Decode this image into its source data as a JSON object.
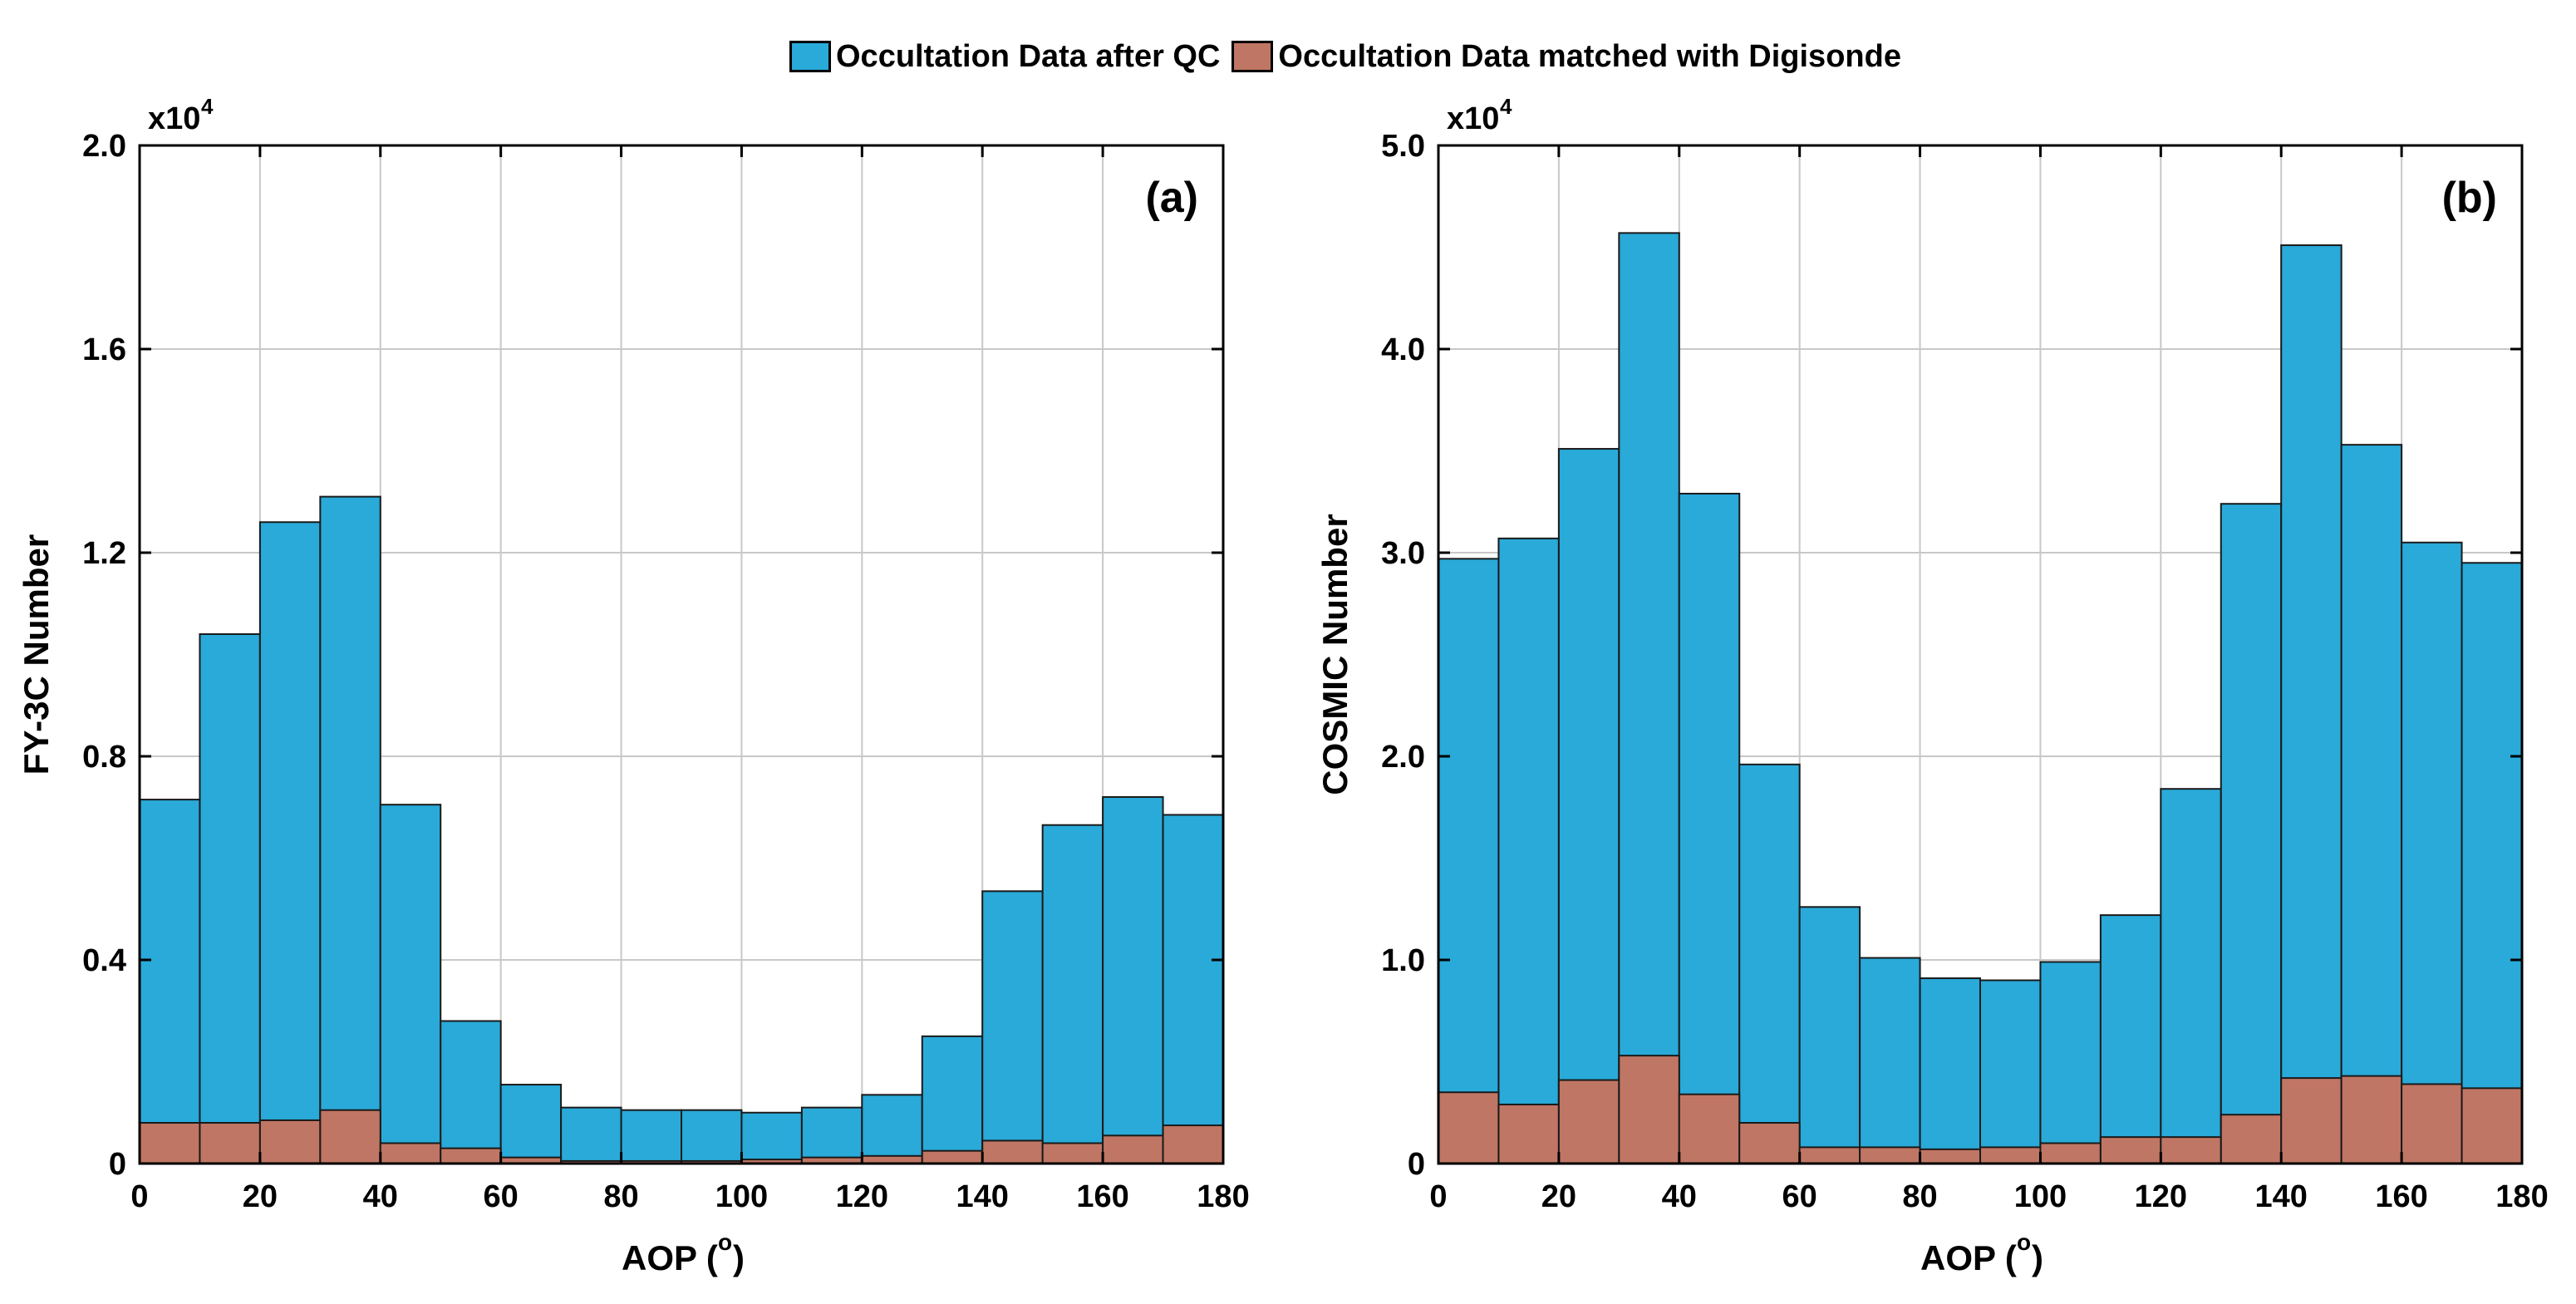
{
  "colors": {
    "after_qc": "#29aad9",
    "matched": "#c07664"
  },
  "legend": {
    "items": [
      {
        "label": "Occultation Data after QC",
        "color": "#29aad9"
      },
      {
        "label": "Occultation Data matched with Digisonde",
        "color": "#c07664"
      }
    ]
  },
  "chart_data": [
    {
      "type": "bar",
      "panel_label": "(a)",
      "xlabel": "AOP (o)",
      "ylabel": "FY-3C Number",
      "exponent_label": "x10",
      "exponent": "4",
      "xlim": [
        0,
        180
      ],
      "ylim": [
        0,
        2.0
      ],
      "x_ticks": [
        "0",
        "20",
        "40",
        "60",
        "80",
        "100",
        "120",
        "140",
        "160",
        "180"
      ],
      "y_ticks": [
        "0",
        "0.4",
        "0.8",
        "1.2",
        "1.6",
        "2.0"
      ],
      "grid": true,
      "bin_width": 10,
      "bin_starts": [
        0,
        10,
        20,
        30,
        40,
        50,
        60,
        70,
        80,
        90,
        100,
        110,
        120,
        130,
        140,
        150,
        160,
        170
      ],
      "series": [
        {
          "name": "Occultation Data after QC",
          "values": [
            0.715,
            1.04,
            1.26,
            1.31,
            0.705,
            0.28,
            0.155,
            0.11,
            0.105,
            0.105,
            0.1,
            0.11,
            0.135,
            0.25,
            0.535,
            0.665,
            0.72,
            0.685
          ]
        },
        {
          "name": "Occultation Data matched with Digisonde",
          "values": [
            0.08,
            0.08,
            0.085,
            0.105,
            0.04,
            0.03,
            0.012,
            0.005,
            0.005,
            0.005,
            0.008,
            0.012,
            0.015,
            0.025,
            0.045,
            0.04,
            0.055,
            0.075
          ]
        }
      ]
    },
    {
      "type": "bar",
      "panel_label": "(b)",
      "xlabel": "AOP (o)",
      "ylabel": "COSMIC Number",
      "exponent_label": "x10",
      "exponent": "4",
      "xlim": [
        0,
        180
      ],
      "ylim": [
        0,
        5.0
      ],
      "x_ticks": [
        "0",
        "20",
        "40",
        "60",
        "80",
        "100",
        "120",
        "140",
        "160",
        "180"
      ],
      "y_ticks": [
        "0",
        "1.0",
        "2.0",
        "3.0",
        "4.0",
        "5.0"
      ],
      "grid": true,
      "bin_width": 10,
      "bin_starts": [
        0,
        10,
        20,
        30,
        40,
        50,
        60,
        70,
        80,
        90,
        100,
        110,
        120,
        130,
        140,
        150,
        160,
        170
      ],
      "series": [
        {
          "name": "Occultation Data after QC",
          "values": [
            2.97,
            3.07,
            3.51,
            4.57,
            3.29,
            1.96,
            1.26,
            1.01,
            0.91,
            0.9,
            0.99,
            1.22,
            1.84,
            3.24,
            4.51,
            3.53,
            3.05,
            2.95
          ]
        },
        {
          "name": "Occultation Data matched with Digisonde",
          "values": [
            0.35,
            0.29,
            0.41,
            0.53,
            0.34,
            0.2,
            0.08,
            0.08,
            0.07,
            0.08,
            0.1,
            0.13,
            0.13,
            0.24,
            0.42,
            0.43,
            0.39,
            0.37
          ]
        }
      ]
    }
  ]
}
